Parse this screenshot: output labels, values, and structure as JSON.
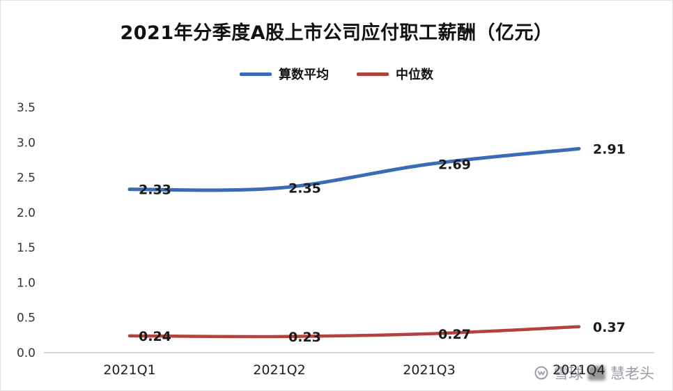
{
  "chart_data": {
    "type": "line",
    "title": "2021年分季度A股上市公司应付职工薪酬（亿元）",
    "categories": [
      "2021Q1",
      "2021Q2",
      "2021Q3",
      "2021Q4"
    ],
    "series": [
      {
        "name": "算数平均",
        "color": "#3b6bb4",
        "values": [
          2.33,
          2.35,
          2.69,
          2.91
        ]
      },
      {
        "name": "中位数",
        "color": "#b3413c",
        "values": [
          0.24,
          0.23,
          0.27,
          0.37
        ]
      }
    ],
    "xlabel": "",
    "ylabel": "",
    "ylim": [
      0,
      3.5
    ],
    "ytick_step": 0.5,
    "ytick_labels": [
      "0.0",
      "0.5",
      "1.0",
      "1.5",
      "2.0",
      "2.5",
      "3.0",
      "3.5"
    ],
    "grid": false,
    "legend_position": "top",
    "data_labels": true
  },
  "watermark": {
    "brand": "雪球",
    "author": "慧老头"
  }
}
